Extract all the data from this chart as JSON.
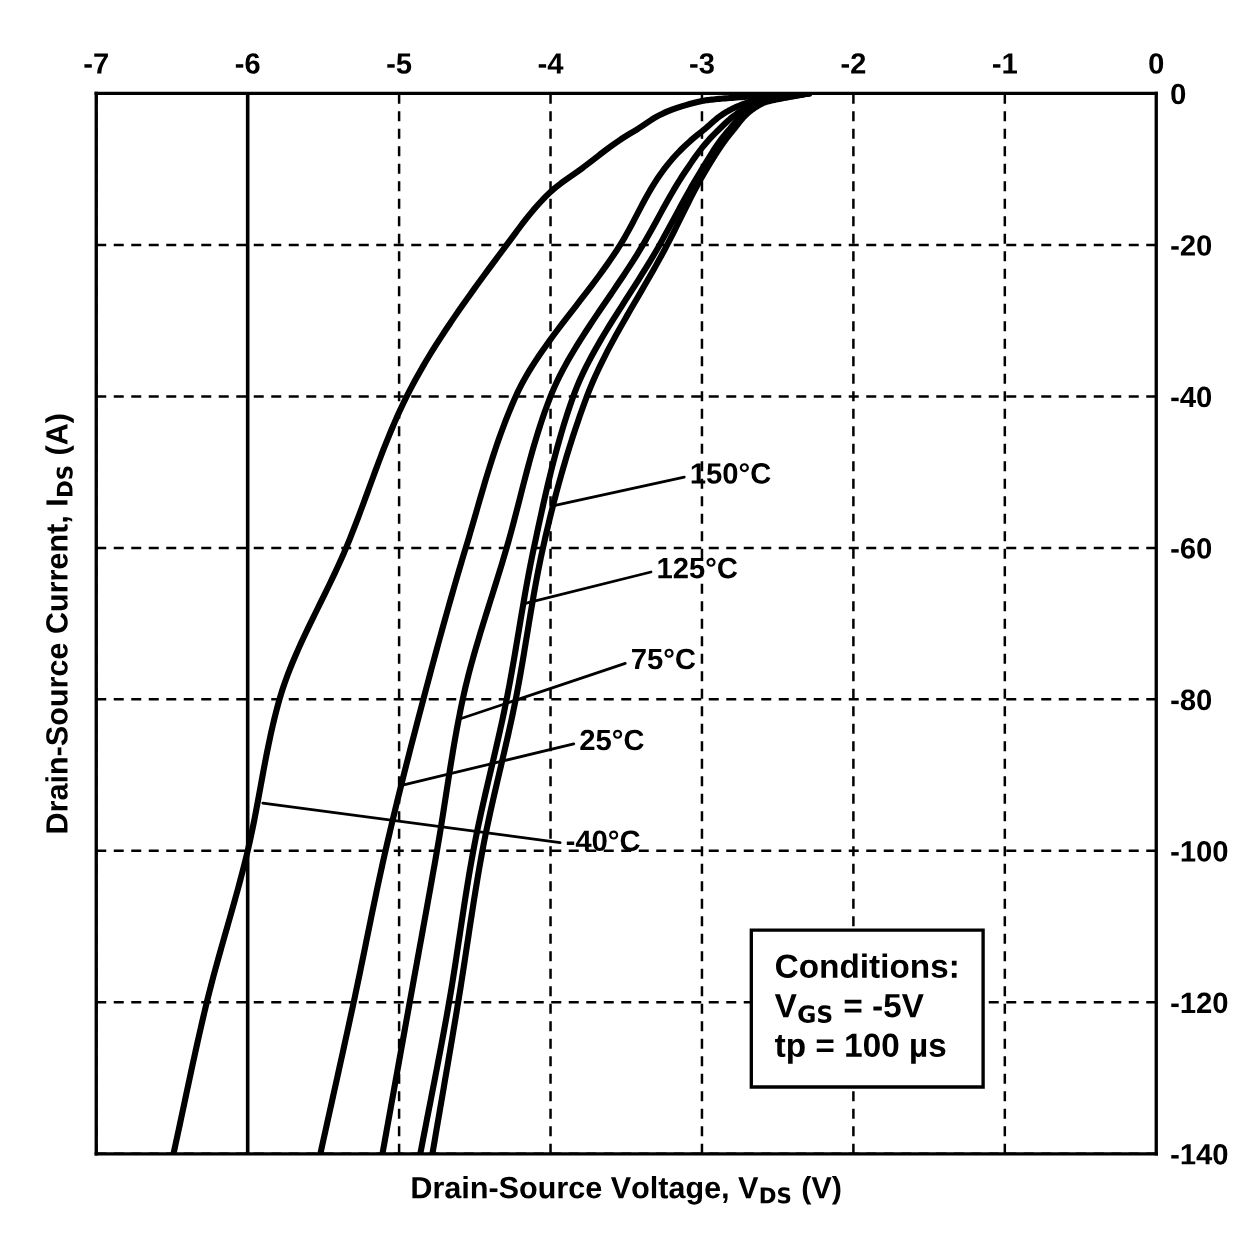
{
  "chart_data": {
    "type": "line",
    "xlabel": "Drain-Source Voltage, V$_{DS}$ (V)",
    "ylabel": "Drain-Source Current, I$_{DS}$ (A)",
    "xlim": [
      -7,
      0
    ],
    "xticks": [
      -7,
      -6,
      -5,
      -4,
      -3,
      -2,
      -1,
      0
    ],
    "ylim": [
      -140,
      0
    ],
    "yticks": [
      -140,
      -120,
      -100,
      -80,
      -60,
      -40,
      -20,
      0
    ],
    "grid": true,
    "line_style": "solid",
    "marker": "none",
    "series": [
      {
        "color": "#000000",
        "x": [
          -2.3,
          -2.6,
          -3.0,
          -3.45,
          -3.8,
          -4.0,
          -4.29,
          -4.95,
          -5.35,
          -5.79,
          -6.0,
          -6.27,
          -6.49
        ],
        "values": [
          0,
          -0.3,
          -1,
          -5,
          -10,
          -13,
          -20,
          -40,
          -60,
          -80,
          -100,
          -120,
          -140
        ]
      },
      {
        "color": "#000000",
        "x": [
          -2.3,
          -2.6,
          -3.0,
          -3.25,
          -3.54,
          -4.23,
          -4.56,
          -4.84,
          -5.09,
          -5.3,
          -5.52
        ],
        "values": [
          0,
          -0.6,
          -5,
          -10,
          -20,
          -40,
          -60,
          -80,
          -100,
          -120,
          -140
        ]
      },
      {
        "color": "#000000",
        "x": [
          -2.3,
          -2.6,
          -2.9,
          -3.1,
          -3.39,
          -4.0,
          -4.29,
          -4.58,
          -4.75,
          -4.93,
          -5.11
        ],
        "values": [
          0,
          -1,
          -5,
          -10,
          -20,
          -40,
          -60,
          -80,
          -100,
          -120,
          -140
        ]
      },
      {
        "color": "#000000",
        "x": [
          -2.3,
          -2.6,
          -2.83,
          -3.0,
          -3.28,
          -3.85,
          -4.11,
          -4.29,
          -4.51,
          -4.67,
          -4.86
        ],
        "values": [
          0,
          -1.2,
          -5,
          -10,
          -20,
          -40,
          -60,
          -80,
          -100,
          -120,
          -140
        ]
      },
      {
        "color": "#000000",
        "x": [
          -2.3,
          -2.6,
          -2.8,
          -2.97,
          -3.23,
          -3.76,
          -4.05,
          -4.23,
          -4.45,
          -4.61,
          -4.78
        ],
        "values": [
          0,
          -1.3,
          -5,
          -10,
          -20,
          -40,
          -60,
          -80,
          -100,
          -120,
          -140
        ]
      }
    ],
    "ref_lines": [
      {
        "axis": "x",
        "value": -6,
        "label": null,
        "color": "#000000",
        "line_style": "solid"
      }
    ],
    "annotations": [
      {
        "text": "150°C",
        "x": -3.97,
        "y": -54.4
      },
      {
        "text": "125°C",
        "x": -4.18,
        "y": -67.4
      },
      {
        "text": "75°C",
        "x": -4.6,
        "y": -82.6
      },
      {
        "text": "25°C",
        "x": -4.97,
        "y": -91.3
      },
      {
        "text": "-40°C",
        "x": -5.9,
        "y": -93.7
      },
      "Conditions:\nV$_{GS}$ = -5V\ntp = 100 µs"
    ]
  }
}
